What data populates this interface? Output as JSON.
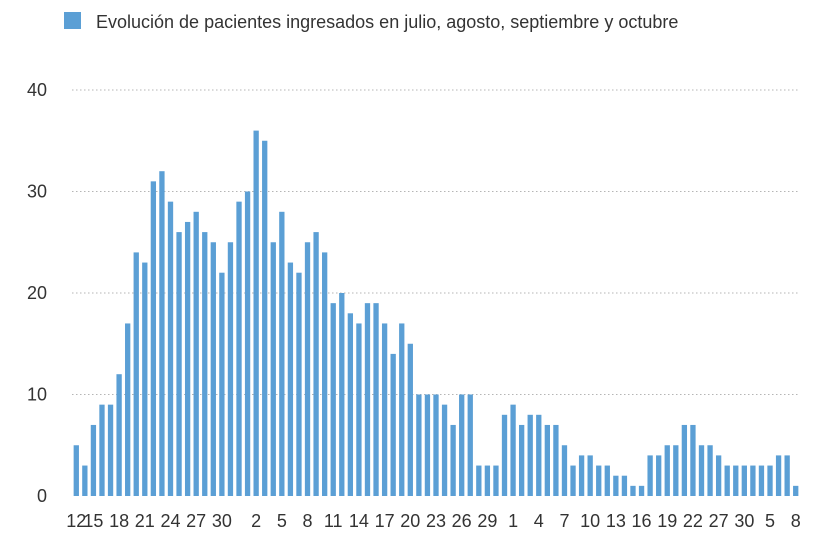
{
  "chart_data": {
    "type": "bar",
    "legend": {
      "label": "Evolución de pacientes ingresados en julio, agosto, septiembre y octubre",
      "position": "top-left"
    },
    "series": [
      {
        "name": "Evolución de pacientes ingresados en julio, agosto, septiembre y octubre",
        "color": "#5b9fd5",
        "values": [
          5,
          3,
          7,
          9,
          9,
          12,
          17,
          24,
          23,
          31,
          32,
          29,
          26,
          27,
          28,
          26,
          25,
          22,
          25,
          29,
          30,
          36,
          35,
          25,
          28,
          23,
          22,
          25,
          26,
          24,
          19,
          20,
          18,
          17,
          19,
          19,
          17,
          14,
          17,
          15,
          10,
          10,
          10,
          9,
          7,
          10,
          10,
          3,
          3,
          3,
          8,
          9,
          7,
          8,
          8,
          7,
          7,
          5,
          3,
          4,
          4,
          3,
          3,
          2,
          2,
          1,
          1,
          4,
          4,
          5,
          5,
          7,
          7,
          5,
          5,
          4,
          3,
          3,
          3,
          3,
          3,
          3,
          4,
          4,
          1
        ]
      }
    ],
    "x_tick_labels": [
      "12",
      "15",
      "18",
      "21",
      "24",
      "27",
      "30",
      "2",
      "5",
      "8",
      "11",
      "14",
      "17",
      "20",
      "23",
      "26",
      "29",
      "1",
      "4",
      "7",
      "10",
      "13",
      "16",
      "19",
      "22",
      "27",
      "30",
      "5",
      "8"
    ],
    "x_tick_positions": [
      0,
      2,
      5,
      8,
      11,
      14,
      17,
      21,
      24,
      27,
      30,
      33,
      36,
      39,
      42,
      45,
      48,
      51,
      54,
      57,
      60,
      63,
      66,
      69,
      72,
      75,
      78,
      81,
      84
    ],
    "y_ticks": [
      0,
      10,
      20,
      30,
      40
    ],
    "ylim": [
      0,
      40
    ],
    "grid": {
      "y": true,
      "style": "dotted"
    }
  }
}
